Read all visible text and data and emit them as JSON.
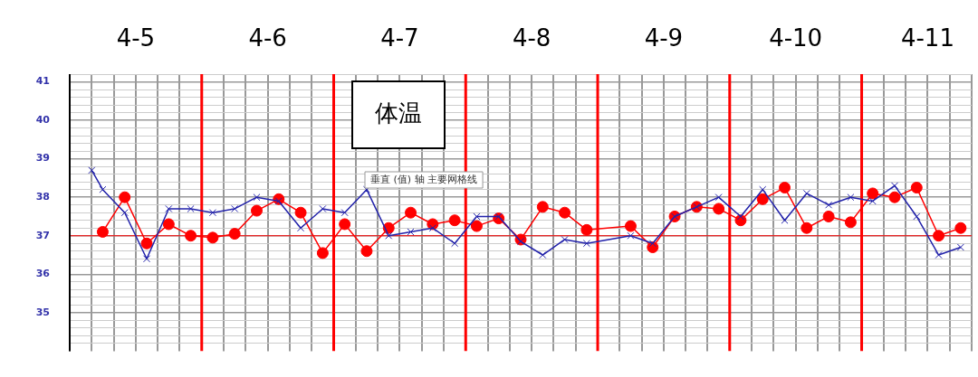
{
  "chart_data": {
    "type": "line",
    "title": "体温",
    "annotations": [
      "垂直 (值) 轴 主要网格线"
    ],
    "xlim": [
      "--04-05T00:00",
      "--04-11T20:00"
    ],
    "xticks": [
      {
        "value": "--04-05T00:00",
        "label": null
      },
      {
        "value": "--04-05T04:00",
        "label": null
      },
      {
        "value": "--04-05T08:00",
        "label": null
      },
      {
        "value": "--04-05T12:00",
        "label": "4-5"
      },
      {
        "value": "--04-05T16:00",
        "label": null
      },
      {
        "value": "--04-05T20:00",
        "label": null
      },
      {
        "value": "--04-06T04:00",
        "label": null
      },
      {
        "value": "--04-06T08:00",
        "label": null
      },
      {
        "value": "--04-06T12:00",
        "label": "4-6"
      },
      {
        "value": "--04-06T16:00",
        "label": null
      },
      {
        "value": "--04-06T20:00",
        "label": null
      },
      {
        "value": "--04-07T04:00",
        "label": null
      },
      {
        "value": "--04-07T08:00",
        "label": null
      },
      {
        "value": "--04-07T12:00",
        "label": "4-7"
      },
      {
        "value": "--04-07T16:00",
        "label": null
      },
      {
        "value": "--04-07T20:00",
        "label": null
      },
      {
        "value": "--04-08T04:00",
        "label": null
      },
      {
        "value": "--04-08T08:00",
        "label": null
      },
      {
        "value": "--04-08T12:00",
        "label": "4-8"
      },
      {
        "value": "--04-08T16:00",
        "label": null
      },
      {
        "value": "--04-08T20:00",
        "label": null
      },
      {
        "value": "--04-09T04:00",
        "label": null
      },
      {
        "value": "--04-09T08:00",
        "label": null
      },
      {
        "value": "--04-09T12:00",
        "label": "4-9"
      },
      {
        "value": "--04-09T16:00",
        "label": null
      },
      {
        "value": "--04-09T20:00",
        "label": null
      },
      {
        "value": "--04-10T04:00",
        "label": null
      },
      {
        "value": "--04-10T08:00",
        "label": null
      },
      {
        "value": "--04-10T12:00",
        "label": "4-10"
      },
      {
        "value": "--04-10T16:00",
        "label": null
      },
      {
        "value": "--04-10T20:00",
        "label": null
      },
      {
        "value": "--04-11T04:00",
        "label": null
      },
      {
        "value": "--04-11T08:00",
        "label": null
      },
      {
        "value": "--04-11T12:00",
        "label": "4-11"
      },
      {
        "value": "--04-11T16:00",
        "label": null
      },
      {
        "value": "--04-11T20:00",
        "label": null
      }
    ],
    "ylim": [
      34,
      41.2
    ],
    "yticks": [
      {
        "value": 34.2,
        "label": null
      },
      {
        "value": 34.4,
        "label": null
      },
      {
        "value": 34.6,
        "label": null
      },
      {
        "value": 34.8,
        "label": null
      },
      35,
      {
        "value": 35.2,
        "label": null
      },
      {
        "value": 35.4,
        "label": null
      },
      {
        "value": 35.6,
        "label": null
      },
      {
        "value": 35.8,
        "label": null
      },
      36,
      {
        "value": 36.2,
        "label": null
      },
      {
        "value": 36.4,
        "label": null
      },
      {
        "value": 36.6,
        "label": null
      },
      {
        "value": 36.8,
        "label": null
      },
      37,
      {
        "value": 37.2,
        "label": null
      },
      {
        "value": 37.4,
        "label": null
      },
      {
        "value": 37.6,
        "label": null
      },
      {
        "value": 37.8,
        "label": null
      },
      38,
      {
        "value": 38.2,
        "label": null
      },
      {
        "value": 38.4,
        "label": null
      },
      {
        "value": 38.6,
        "label": null
      },
      {
        "value": 38.8,
        "label": null
      },
      39,
      {
        "value": 39.2,
        "label": null
      },
      {
        "value": 39.4,
        "label": null
      },
      {
        "value": 39.6,
        "label": null
      },
      {
        "value": 39.8,
        "label": null
      },
      40,
      {
        "value": 40.2,
        "label": null
      },
      {
        "value": 40.4,
        "label": null
      },
      {
        "value": 40.6,
        "label": null
      },
      {
        "value": 40.8,
        "label": null
      },
      41,
      {
        "value": 41.2,
        "label": null
      }
    ],
    "grid": true,
    "legend": false,
    "ref_lines": [
      {
        "axis": "y",
        "value": 37,
        "color": "#ff0000"
      },
      {
        "axis": "x",
        "value": "--04-06T00:00",
        "color": "#ff0000"
      },
      {
        "axis": "x",
        "value": "--04-07T00:00",
        "color": "#ff0000"
      },
      {
        "axis": "x",
        "value": "--04-08T00:00",
        "color": "#ff0000"
      },
      {
        "axis": "x",
        "value": "--04-09T00:00",
        "color": "#ff0000"
      },
      {
        "axis": "x",
        "value": "--04-10T00:00",
        "color": "#ff0000"
      },
      {
        "axis": "x",
        "value": "--04-11T00:00",
        "color": "#ff0000"
      }
    ],
    "series": [
      {
        "color": "#ff0000",
        "marker": "circle",
        "x": [
          "--04-05T06:00",
          "--04-05T10:00",
          "--04-05T14:00",
          "--04-05T18:00",
          "--04-05T22:00",
          "--04-06T02:00",
          "--04-06T06:00",
          "--04-06T10:00",
          "--04-06T14:00",
          "--04-06T18:00",
          "--04-06T22:00",
          "--04-07T02:00",
          "--04-07T06:00",
          "--04-07T10:00",
          "--04-07T14:00",
          "--04-07T18:00",
          "--04-07T22:00",
          "--04-08T02:00",
          "--04-08T06:00",
          "--04-08T10:00",
          "--04-08T14:00",
          "--04-08T18:00",
          "--04-08T22:00",
          "--04-09T06:00",
          "--04-09T10:00",
          "--04-09T14:00",
          "--04-09T18:00",
          "--04-09T22:00",
          "--04-10T02:00",
          "--04-10T06:00",
          "--04-10T10:00",
          "--04-10T14:00",
          "--04-10T18:00",
          "--04-10T22:00",
          "--04-11T02:00",
          "--04-11T06:00",
          "--04-11T10:00",
          "--04-11T14:00",
          "--04-11T18:00"
        ],
        "values": [
          37.1,
          38.0,
          36.8,
          37.3,
          37.0,
          36.95,
          37.05,
          37.65,
          37.95,
          37.6,
          36.55,
          37.3,
          36.6,
          37.2,
          37.6,
          37.3,
          37.4,
          37.25,
          37.45,
          36.9,
          37.75,
          37.6,
          37.15,
          37.25,
          36.7,
          37.5,
          37.75,
          37.7,
          37.4,
          37.95,
          38.25,
          37.2,
          37.5,
          37.35,
          38.1,
          38.0,
          38.25,
          37.0,
          37.2
        ]
      },
      {
        "color": "#2222aa",
        "marker": "cross",
        "x": [
          "--04-05T04:00",
          "--04-05T06:00",
          "--04-05T10:00",
          "--04-05T14:00",
          "--04-05T18:00",
          "--04-05T22:00",
          "--04-06T02:00",
          "--04-06T06:00",
          "--04-06T10:00",
          "--04-06T14:00",
          "--04-06T18:00",
          "--04-06T22:00",
          "--04-07T02:00",
          "--04-07T06:00",
          "--04-07T10:00",
          "--04-07T14:00",
          "--04-07T18:00",
          "--04-07T22:00",
          "--04-08T02:00",
          "--04-08T06:00",
          "--04-08T10:00",
          "--04-08T14:00",
          "--04-08T18:00",
          "--04-08T22:00",
          "--04-09T06:00",
          "--04-09T10:00",
          "--04-09T14:00",
          "--04-09T18:00",
          "--04-09T22:00",
          "--04-10T02:00",
          "--04-10T06:00",
          "--04-10T10:00",
          "--04-10T14:00",
          "--04-10T18:00",
          "--04-10T22:00",
          "--04-11T02:00",
          "--04-11T06:00",
          "--04-11T10:00",
          "--04-11T14:00",
          "--04-11T18:00"
        ],
        "values": [
          38.7,
          38.2,
          37.6,
          36.4,
          37.7,
          37.7,
          37.6,
          37.7,
          38.0,
          37.9,
          37.2,
          37.7,
          37.6,
          38.2,
          37.0,
          37.1,
          37.2,
          36.8,
          37.5,
          37.5,
          36.85,
          36.5,
          36.9,
          36.8,
          37.0,
          36.8,
          37.5,
          37.75,
          38.0,
          37.5,
          38.2,
          37.4,
          38.1,
          37.8,
          38.0,
          37.9,
          38.3,
          37.5,
          36.5,
          36.7
        ]
      }
    ]
  }
}
